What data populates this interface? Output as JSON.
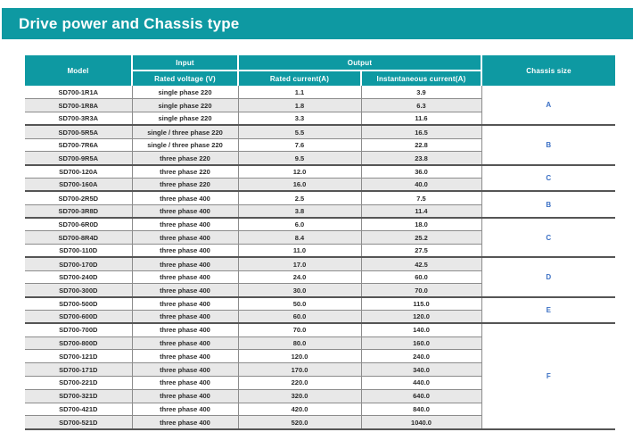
{
  "page": {
    "title": "Drive power and Chassis type"
  },
  "table": {
    "headers": {
      "model": "Model",
      "input": "Input",
      "rated_voltage": "Rated voltage (V)",
      "output": "Output",
      "rated_current": "Rated current(A)",
      "instantaneous_current": "Instantaneous current(A)",
      "chassis_size": "Chassis size"
    },
    "rows": [
      {
        "model": "SD700-1R1A",
        "voltage": "single phase 220",
        "rated": "1.1",
        "instantaneous": "3.9"
      },
      {
        "model": "SD700-1R8A",
        "voltage": "single phase 220",
        "rated": "1.8",
        "instantaneous": "6.3"
      },
      {
        "model": "SD700-3R3A",
        "voltage": "single phase 220",
        "rated": "3.3",
        "instantaneous": "11.6"
      },
      {
        "model": "SD700-5R5A",
        "voltage": "single / three phase 220",
        "rated": "5.5",
        "instantaneous": "16.5"
      },
      {
        "model": "SD700-7R6A",
        "voltage": "single / three phase 220",
        "rated": "7.6",
        "instantaneous": "22.8"
      },
      {
        "model": "SD700-9R5A",
        "voltage": "three phase 220",
        "rated": "9.5",
        "instantaneous": "23.8"
      },
      {
        "model": "SD700-120A",
        "voltage": "three phase 220",
        "rated": "12.0",
        "instantaneous": "36.0"
      },
      {
        "model": "SD700-160A",
        "voltage": "three phase 220",
        "rated": "16.0",
        "instantaneous": "40.0"
      },
      {
        "model": "SD700-2R5D",
        "voltage": "three phase 400",
        "rated": "2.5",
        "instantaneous": "7.5"
      },
      {
        "model": "SD700-3R8D",
        "voltage": "three phase 400",
        "rated": "3.8",
        "instantaneous": "11.4"
      },
      {
        "model": "SD700-6R0D",
        "voltage": "three phase 400",
        "rated": "6.0",
        "instantaneous": "18.0"
      },
      {
        "model": "SD700-8R4D",
        "voltage": "three phase 400",
        "rated": "8.4",
        "instantaneous": "25.2"
      },
      {
        "model": "SD700-110D",
        "voltage": "three phase 400",
        "rated": "11.0",
        "instantaneous": "27.5"
      },
      {
        "model": "SD700-170D",
        "voltage": "three phase 400",
        "rated": "17.0",
        "instantaneous": "42.5"
      },
      {
        "model": "SD700-240D",
        "voltage": "three phase 400",
        "rated": "24.0",
        "instantaneous": "60.0"
      },
      {
        "model": "SD700-300D",
        "voltage": "three phase 400",
        "rated": "30.0",
        "instantaneous": "70.0"
      },
      {
        "model": "SD700-500D",
        "voltage": "three phase 400",
        "rated": "50.0",
        "instantaneous": "115.0"
      },
      {
        "model": "SD700-600D",
        "voltage": "three phase 400",
        "rated": "60.0",
        "instantaneous": "120.0"
      },
      {
        "model": "SD700-700D",
        "voltage": "three phase 400",
        "rated": "70.0",
        "instantaneous": "140.0"
      },
      {
        "model": "SD700-800D",
        "voltage": "three phase 400",
        "rated": "80.0",
        "instantaneous": "160.0"
      },
      {
        "model": "SD700-121D",
        "voltage": "three phase 400",
        "rated": "120.0",
        "instantaneous": "240.0"
      },
      {
        "model": "SD700-171D",
        "voltage": "three phase 400",
        "rated": "170.0",
        "instantaneous": "340.0"
      },
      {
        "model": "SD700-221D",
        "voltage": "three phase 400",
        "rated": "220.0",
        "instantaneous": "440.0"
      },
      {
        "model": "SD700-321D",
        "voltage": "three phase 400",
        "rated": "320.0",
        "instantaneous": "640.0"
      },
      {
        "model": "SD700-421D",
        "voltage": "three phase 400",
        "rated": "420.0",
        "instantaneous": "840.0"
      },
      {
        "model": "SD700-521D",
        "voltage": "three phase 400",
        "rated": "520.0",
        "instantaneous": "1040.0"
      }
    ],
    "chassis_groups": [
      {
        "label": "A",
        "span": 3
      },
      {
        "label": "B",
        "span": 3
      },
      {
        "label": "C",
        "span": 2
      },
      {
        "label": "B",
        "span": 2
      },
      {
        "label": "C",
        "span": 3
      },
      {
        "label": "D",
        "span": 3
      },
      {
        "label": "E",
        "span": 2
      },
      {
        "label": "F",
        "span": 8
      }
    ],
    "colors": {
      "accent": "#0E99A2",
      "stripe": "#E8E8E8",
      "chassis_letter": "#3A6FC4",
      "row_line": "#8C8C8C",
      "group_line": "#555555"
    }
  }
}
